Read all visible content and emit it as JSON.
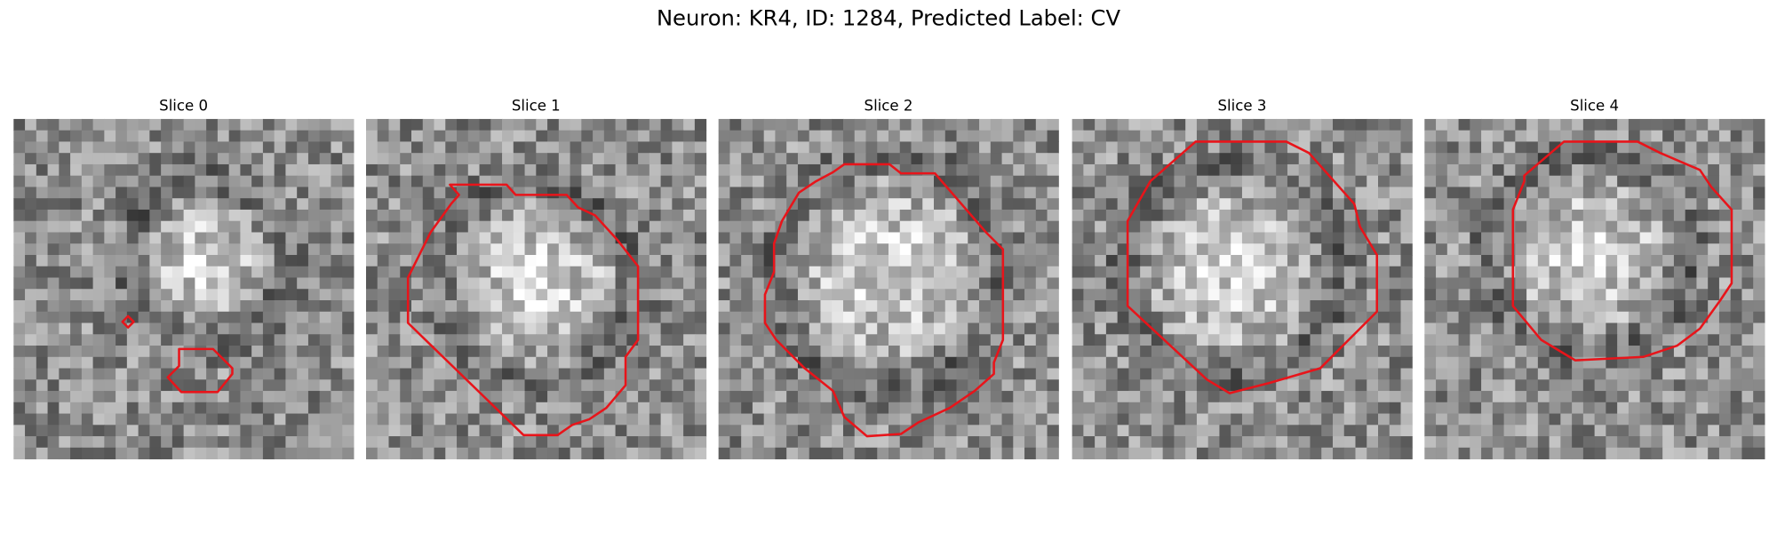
{
  "title": "Neuron: KR4, ID: 1284, Predicted Label: CV",
  "panels": [
    {
      "title": "Slice 0"
    },
    {
      "title": "Slice 1"
    },
    {
      "title": "Slice 2"
    },
    {
      "title": "Slice 3"
    },
    {
      "title": "Slice 4"
    }
  ]
}
